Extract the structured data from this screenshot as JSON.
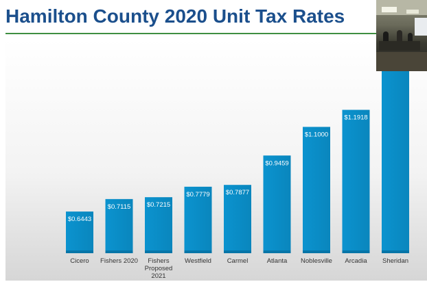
{
  "slide": {
    "title": "Hamilton County 2020 Unit Tax Rates"
  },
  "chart_data": {
    "type": "bar",
    "title": "",
    "xlabel": "",
    "ylabel": "",
    "categories": [
      "Cicero",
      "Fishers 2020",
      "Fishers Proposed 2021",
      "Westfield",
      "Carmel",
      "Atlanta",
      "Noblesville",
      "Arcadia",
      "Sheridan"
    ],
    "series": [
      {
        "values": [
          0.6443,
          0.7115,
          0.7215,
          0.7779,
          0.7877,
          0.9459,
          1.1,
          1.1918,
          1.4
        ],
        "data_labels": [
          "$0.6443",
          "$0.7115",
          "$0.7215",
          "$0.7779",
          "$0.7877",
          "$0.9459",
          "$1.1000",
          "$1.1918",
          ""
        ]
      }
    ],
    "ylim": [
      0.42,
      1.4
    ],
    "grid": false,
    "legend": "none",
    "bar_color": "#0b93cf",
    "bar_color_dark": "#0775a8",
    "label_color": "#ffffff"
  },
  "colors": {
    "title": "#1b4f8c",
    "title_rule": "#3e8e41"
  }
}
